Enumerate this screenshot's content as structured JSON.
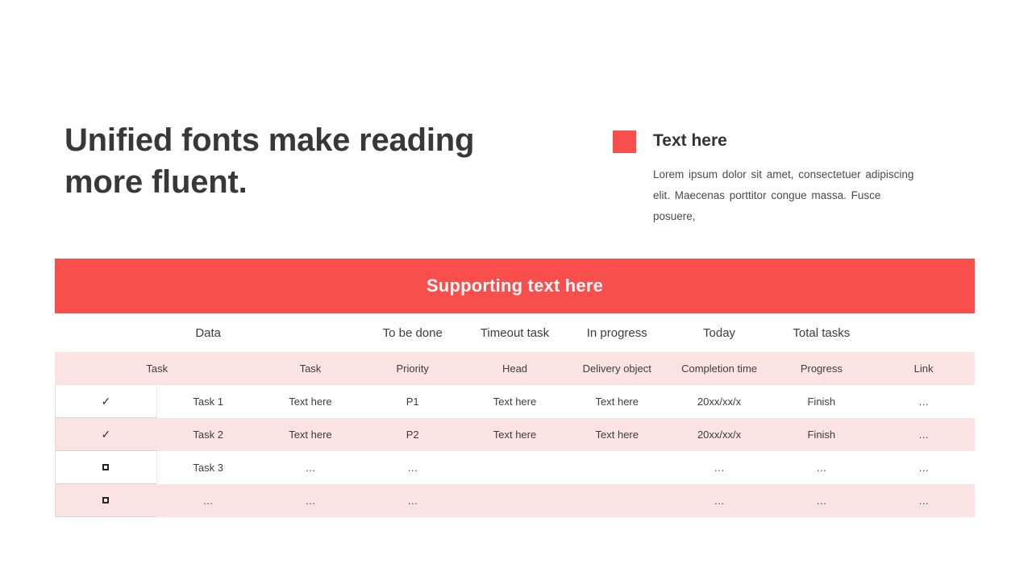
{
  "slide": {
    "title": "Unified fonts make reading more fluent.",
    "callout": {
      "heading": "Text here",
      "body_lines": [
        "Lorem ipsum dolor sit amet, consectetuer adipiscing",
        "elit. Maecenas porttitor congue massa. Fusce",
        "posuere,"
      ]
    },
    "banner": {
      "label": "Supporting text here"
    },
    "colors": {
      "accent_red": "#F84F4D",
      "row_pink": "#FCE3E3",
      "text_dark": "#383838"
    }
  },
  "table": {
    "group_header": [
      "Data",
      "To be done",
      "Timeout task",
      "In progress",
      "Today",
      "Total tasks"
    ],
    "columns": [
      "Task",
      "Task",
      "Priority",
      "Head",
      "Delivery object",
      "Completion time",
      "Progress",
      "Link"
    ],
    "check_glyph": "✓",
    "rows": [
      {
        "checked": true,
        "cells": [
          "Task 1",
          "Text here",
          "P1",
          "Text here",
          "Text here",
          "20xx/xx/x",
          "Finish",
          "…"
        ]
      },
      {
        "checked": true,
        "cells": [
          "Task 2",
          "Text here",
          "P2",
          "Text here",
          "Text here",
          "20xx/xx/x",
          "Finish",
          "…"
        ]
      },
      {
        "checked": false,
        "cells": [
          "Task 3",
          "…",
          "…",
          "",
          "",
          "…",
          "…",
          "…"
        ]
      },
      {
        "checked": false,
        "cells": [
          "…",
          "…",
          "…",
          "",
          "",
          "…",
          "…",
          "…"
        ]
      }
    ]
  }
}
